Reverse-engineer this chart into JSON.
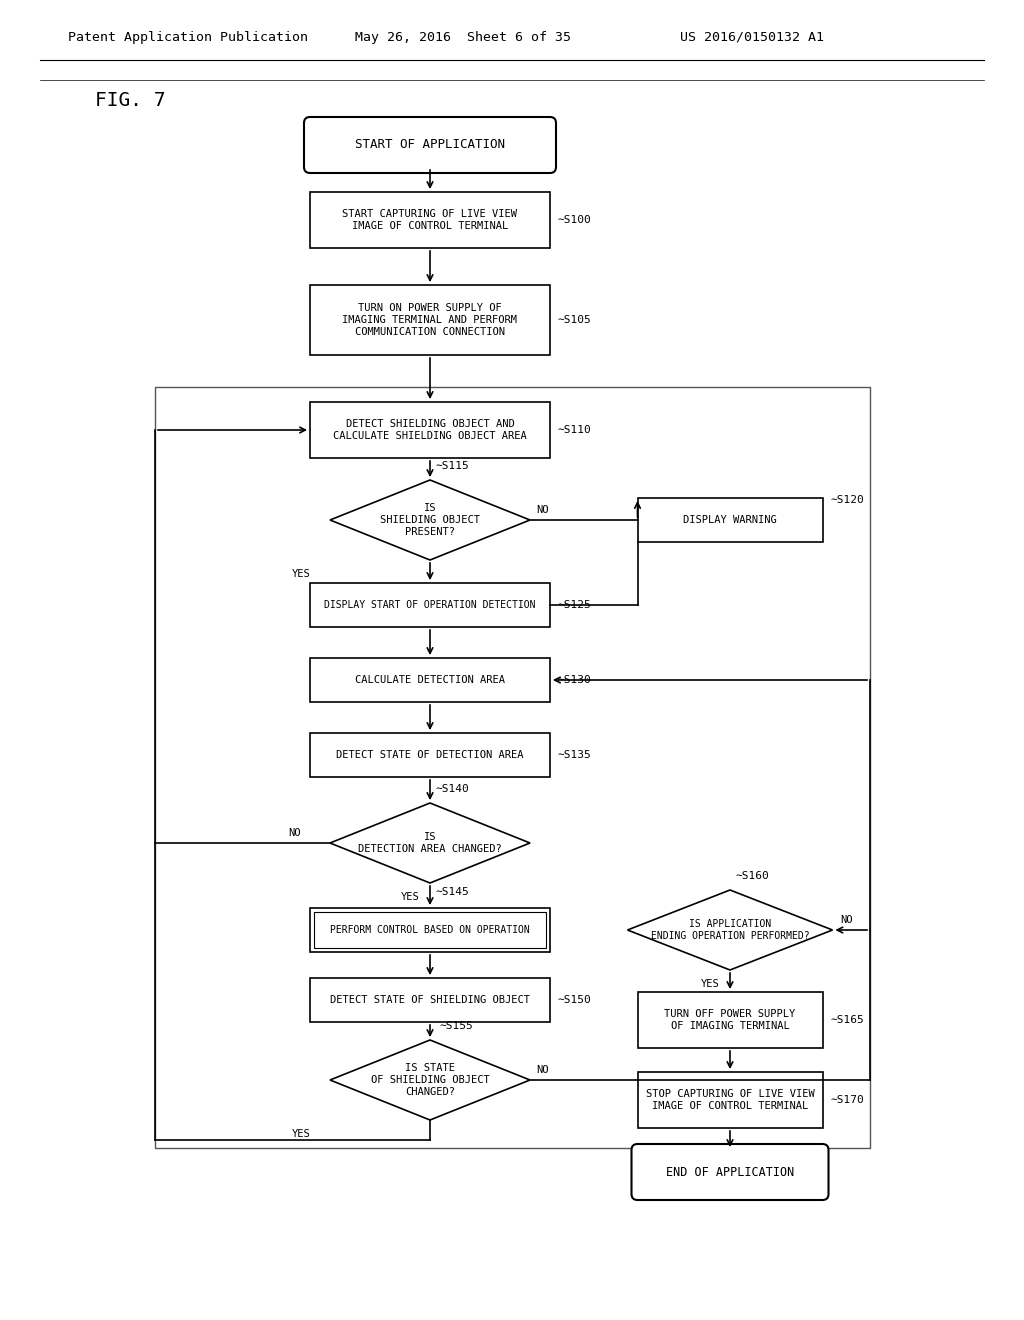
{
  "bg_color": "#ffffff",
  "header_left": "Patent Application Publication",
  "header_mid": "May 26, 2016  Sheet 6 of 35",
  "header_right": "US 2016/0150132 A1",
  "fig_label": "FIG. 7",
  "nodes": {
    "start": {
      "text": "START OF APPLICATION",
      "type": "stadium"
    },
    "s100": {
      "text": "START CAPTURING OF LIVE VIEW\nIMAGE OF CONTROL TERMINAL",
      "type": "rect",
      "label": "S100"
    },
    "s105": {
      "text": "TURN ON POWER SUPPLY OF\nIMAGING TERMINAL AND PERFORM\nCOMMUNICATION CONNECTION",
      "type": "rect",
      "label": "S105"
    },
    "s110": {
      "text": "DETECT SHIELDING OBJECT AND\nCALCULATE SHIELDING OBJECT AREA",
      "type": "rect",
      "label": "S110"
    },
    "s115": {
      "text": "IS\nSHIELDING OBJECT\nPRESENT?",
      "type": "diamond",
      "label": "S115"
    },
    "s120": {
      "text": "DISPLAY WARNING",
      "type": "rect",
      "label": "S120"
    },
    "s125": {
      "text": "DISPLAY START OF OPERATION DETECTION",
      "type": "rect",
      "label": "S125"
    },
    "s130": {
      "text": "CALCULATE DETECTION AREA",
      "type": "rect",
      "label": "S130"
    },
    "s135": {
      "text": "DETECT STATE OF DETECTION AREA",
      "type": "rect",
      "label": "S135"
    },
    "s140": {
      "text": "IS\nDETECTION AREA CHANGED?",
      "type": "diamond",
      "label": "S140"
    },
    "s145": {
      "text": "PERFORM CONTROL BASED ON OPERATION",
      "type": "rect",
      "label": "S145",
      "double": true
    },
    "s150": {
      "text": "DETECT STATE OF SHIELDING OBJECT",
      "type": "rect",
      "label": "S150"
    },
    "s155": {
      "text": "IS STATE\nOF SHIELDING OBJECT\nCHANGED?",
      "type": "diamond",
      "label": "S155"
    },
    "s160": {
      "text": "IS APPLICATION\nENDING OPERATION PERFORMED?",
      "type": "diamond",
      "label": "S160"
    },
    "s165": {
      "text": "TURN OFF POWER SUPPLY\nOF IMAGING TERMINAL",
      "type": "rect",
      "label": "S165"
    },
    "s170": {
      "text": "STOP CAPTURING OF LIVE VIEW\nIMAGE OF CONTROL TERMINAL",
      "type": "rect",
      "label": "S170"
    },
    "end": {
      "text": "END OF APPLICATION",
      "type": "stadium"
    }
  }
}
